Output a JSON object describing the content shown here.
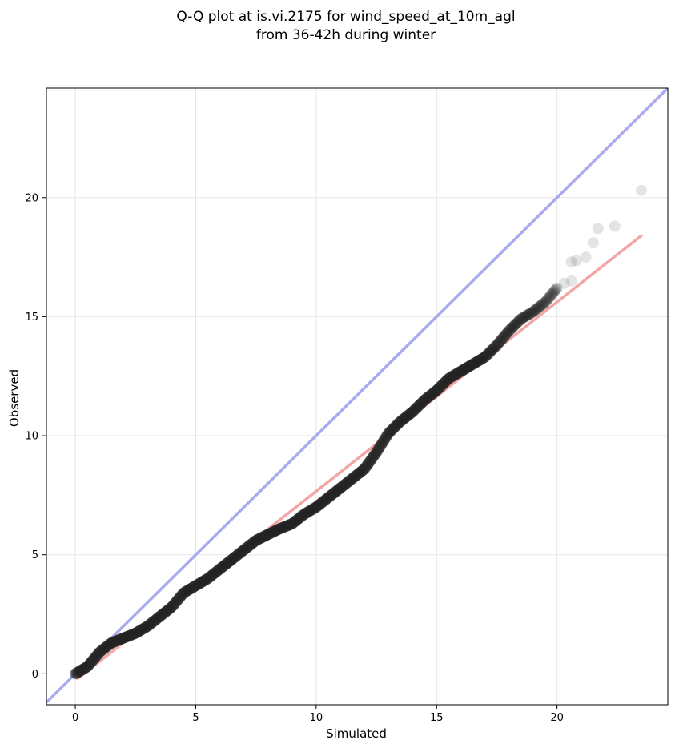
{
  "chart_data": {
    "type": "scatter",
    "title_lines": [
      "Q-Q plot at is.vi.2175 for wind_speed_at_10m_agl",
      "from 36-42h during winter"
    ],
    "xlabel": "Simulated",
    "ylabel": "Observed",
    "xlim": [
      -1.2,
      24.6
    ],
    "ylim": [
      -1.3,
      24.6
    ],
    "x_ticks": [
      0,
      5,
      10,
      15,
      20
    ],
    "y_ticks": [
      0,
      5,
      10,
      15,
      20
    ],
    "x_tick_labels": [
      "0",
      "5",
      "10",
      "15",
      "20"
    ],
    "y_tick_labels": [
      "0",
      "5",
      "10",
      "15",
      "20"
    ],
    "grid": true,
    "identity_line": {
      "from": [
        -1.2,
        -1.2
      ],
      "to": [
        24.6,
        24.6
      ],
      "color": "#aaaaf0"
    },
    "fit_line": {
      "from": [
        0.1,
        -0.2
      ],
      "to": [
        23.5,
        18.4
      ],
      "color": "#f4a6a6"
    },
    "point_color": "#222222",
    "quantile_curve": [
      [
        0.0,
        0.0
      ],
      [
        0.5,
        0.3
      ],
      [
        1.0,
        0.9
      ],
      [
        1.5,
        1.3
      ],
      [
        2.0,
        1.5
      ],
      [
        2.5,
        1.7
      ],
      [
        3.0,
        2.0
      ],
      [
        3.5,
        2.4
      ],
      [
        4.0,
        2.8
      ],
      [
        4.5,
        3.4
      ],
      [
        5.0,
        3.7
      ],
      [
        5.5,
        4.0
      ],
      [
        6.0,
        4.4
      ],
      [
        6.5,
        4.8
      ],
      [
        7.0,
        5.2
      ],
      [
        7.5,
        5.6
      ],
      [
        8.0,
        5.85
      ],
      [
        8.5,
        6.1
      ],
      [
        9.0,
        6.3
      ],
      [
        9.5,
        6.7
      ],
      [
        10.0,
        7.0
      ],
      [
        10.5,
        7.4
      ],
      [
        11.0,
        7.8
      ],
      [
        11.5,
        8.2
      ],
      [
        12.0,
        8.6
      ],
      [
        12.5,
        9.3
      ],
      [
        13.0,
        10.1
      ],
      [
        13.5,
        10.6
      ],
      [
        14.0,
        11.0
      ],
      [
        14.5,
        11.5
      ],
      [
        15.0,
        11.9
      ],
      [
        15.5,
        12.4
      ],
      [
        16.0,
        12.7
      ],
      [
        16.5,
        13.0
      ],
      [
        17.0,
        13.3
      ],
      [
        17.5,
        13.8
      ],
      [
        18.0,
        14.4
      ],
      [
        18.5,
        14.9
      ],
      [
        19.0,
        15.2
      ],
      [
        19.5,
        15.6
      ],
      [
        20.0,
        16.2
      ]
    ],
    "tail_points": [
      [
        20.3,
        16.4
      ],
      [
        20.6,
        16.5
      ],
      [
        20.6,
        17.3
      ],
      [
        20.8,
        17.35
      ],
      [
        21.2,
        17.5
      ],
      [
        21.5,
        18.1
      ],
      [
        21.7,
        18.7
      ],
      [
        22.4,
        18.8
      ],
      [
        23.5,
        20.3
      ]
    ]
  }
}
